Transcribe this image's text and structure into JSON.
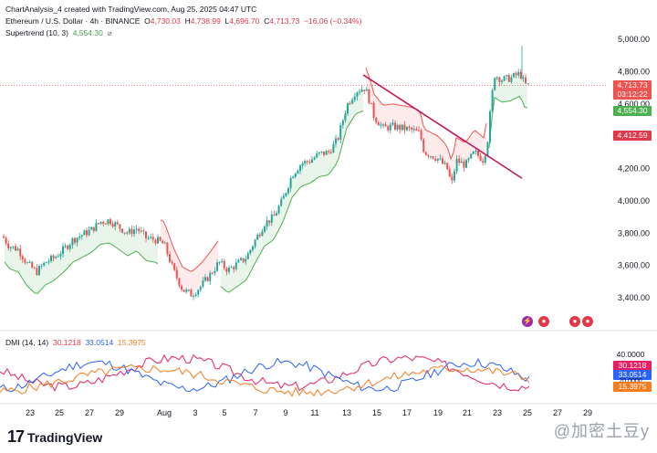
{
  "header": {
    "chart_title": "ChartAnalysis_4 created with TradingView.com, Aug 25, 2025 04:47 UTC",
    "symbol": "Ethereum / U.S. Dollar · 4h · BINANCE",
    "open_label": "O",
    "open": "4,730.03",
    "high_label": "H",
    "high": "4,738.99",
    "low_label": "L",
    "low": "4,696.70",
    "close_label": "C",
    "close": "4,713.73",
    "change": "−16.06 (−0.34%)",
    "indicator_name": "Supertrend (10, 3)",
    "indicator_value": "4,554.30",
    "indicator_icon": "hide-eye-icon"
  },
  "price_axis": {
    "ticks": [
      "5,000.00",
      "4,800.00",
      "4,600.00",
      "4,200.00",
      "4,000.00",
      "3,800.00",
      "3,600.00",
      "3,400.00"
    ]
  },
  "price_labels": {
    "last_price": "4,713.73",
    "countdown": "03:12:22",
    "supertrend": "4,554.30",
    "support": "4,412.59"
  },
  "dmi": {
    "name": "DMI (14, 14)",
    "di_plus": "33.0514",
    "di_minus": "30.1218",
    "adx": "15.3975",
    "axis_tick": "40.0000",
    "axis_tick_lower": "20.0000"
  },
  "time_axis": {
    "ticks": [
      "23",
      "25",
      "27",
      "29",
      "Aug",
      "3",
      "5",
      "7",
      "9",
      "11",
      "13",
      "15",
      "17",
      "19",
      "21",
      "23",
      "25",
      "27",
      "29"
    ]
  },
  "footer": {
    "brand": "TradingView",
    "logo_icon": "tradingview-logo-icon",
    "watermark": "@加密土豆y"
  },
  "colors": {
    "up": "#26a69a",
    "down": "#ef5350",
    "supertrend_up": "#4caf50",
    "supertrend_down": "#ef5350",
    "trendline": "#c2185b",
    "di_plus": "#2962ff",
    "di_minus": "#e91e63",
    "adx": "#f57c1f"
  }
}
